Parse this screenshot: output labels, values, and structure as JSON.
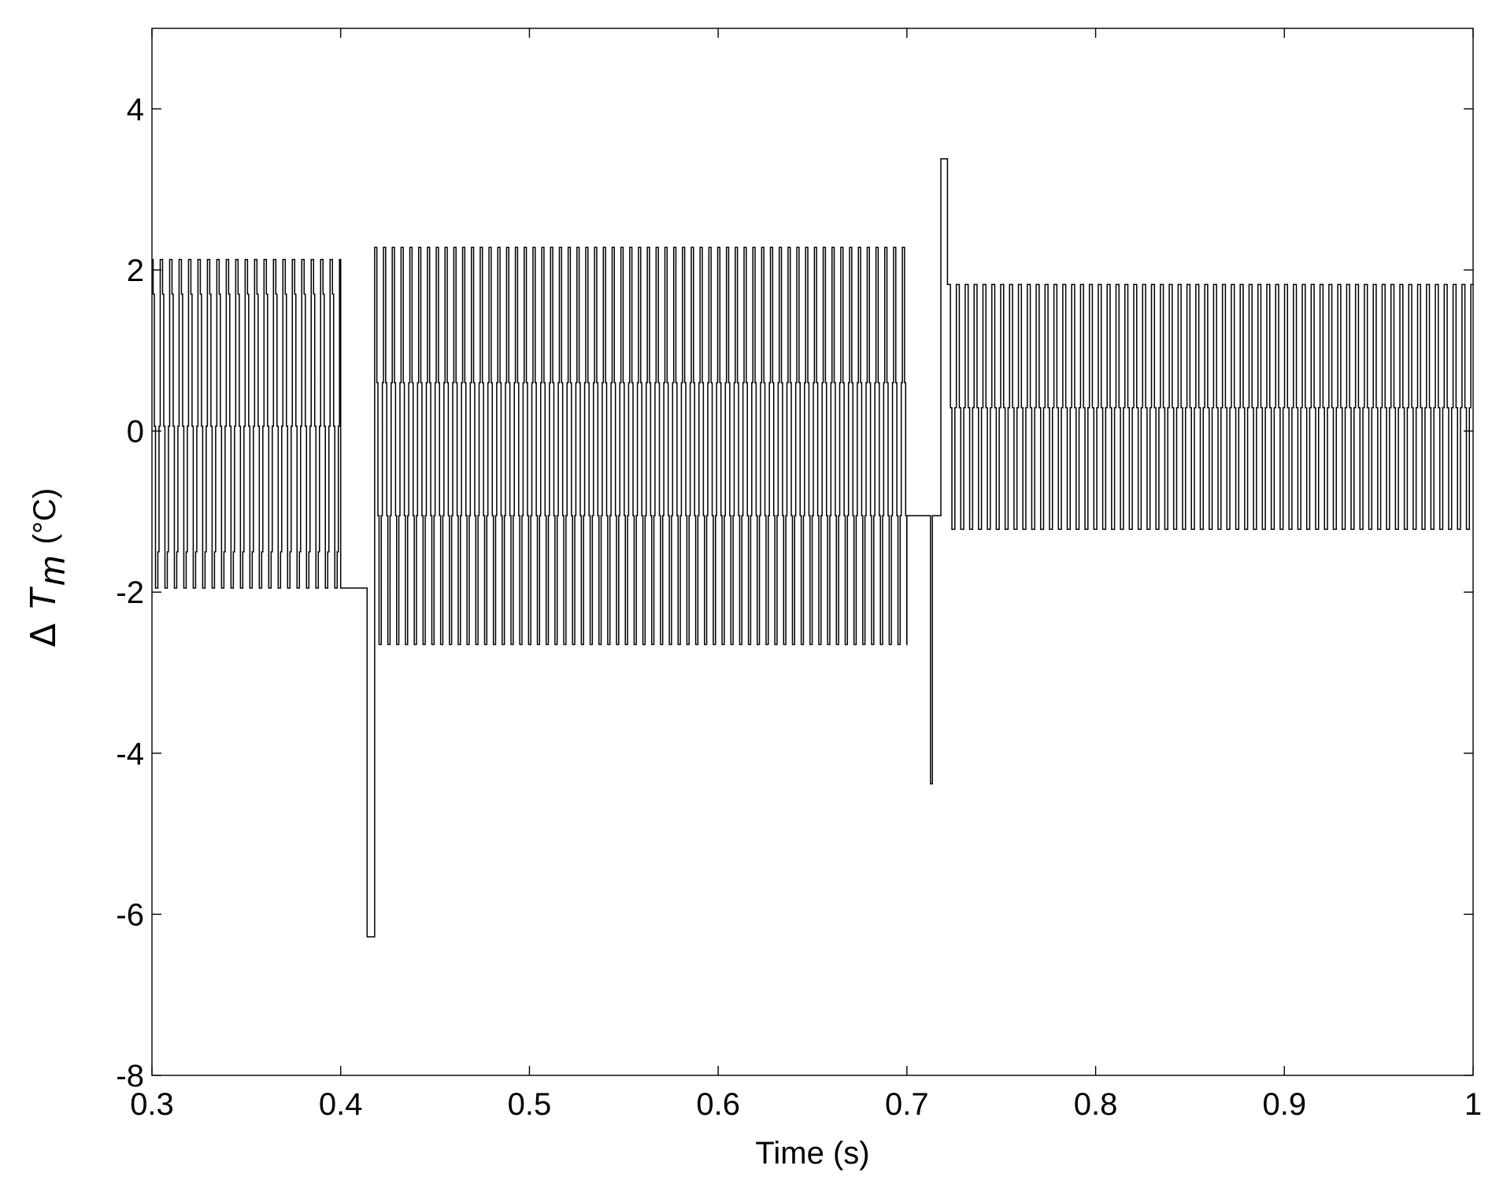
{
  "chart_data": {
    "type": "line",
    "xlabel": "Time (s)",
    "ylabel": {
      "symbol": "Δ",
      "variable": "T",
      "subscript": "m",
      "unit": "(°C)"
    },
    "xlim": [
      0.3,
      1.0
    ],
    "ylim": [
      -8,
      5
    ],
    "xticks": [
      0.3,
      0.4,
      0.5,
      0.6,
      0.7,
      0.8,
      0.9,
      1.0
    ],
    "xtick_labels": [
      "0.3",
      "0.4",
      "0.5",
      "0.6",
      "0.7",
      "0.8",
      "0.9",
      "1"
    ],
    "yticks": [
      -8,
      -6,
      -4,
      -2,
      0,
      2,
      4
    ],
    "ytick_labels": [
      "-8",
      "-6",
      "-4",
      "-2",
      "0",
      "2",
      "4"
    ],
    "grid": false,
    "line_color": "#000000",
    "series": [
      {
        "segments": [
          {
            "t_start": 0.3,
            "t_end": 0.4,
            "period": 0.005,
            "levels": [
              2.13,
              1.7,
              0.06,
              -1.95,
              -1.95,
              -1.5,
              0.06,
              2.13
            ],
            "note_free": true
          },
          {
            "t_start": 0.4,
            "t_end": 0.414,
            "constant": -1.95
          },
          {
            "t_start": 0.414,
            "t_end": 0.418,
            "constant": -6.28
          },
          {
            "t_start": 0.418,
            "t_end": 0.7,
            "period": 0.00466,
            "levels": [
              2.28,
              2.28,
              0.6,
              -1.05,
              -2.65,
              -2.65,
              -1.05,
              0.6
            ]
          },
          {
            "t_start": 0.7,
            "t_end": 0.7125,
            "constant": -1.05
          },
          {
            "t_start": 0.7125,
            "t_end": 0.7135,
            "constant": -4.38
          },
          {
            "t_start": 0.7135,
            "t_end": 0.718,
            "constant": -1.05
          },
          {
            "t_start": 0.718,
            "t_end": 0.7215,
            "constant": 3.38
          },
          {
            "t_start": 0.7215,
            "t_end": 1.0,
            "period": 0.0047,
            "levels": [
              1.82,
              1.82,
              0.29,
              -1.22,
              -1.22,
              0.29
            ]
          }
        ]
      }
    ]
  }
}
